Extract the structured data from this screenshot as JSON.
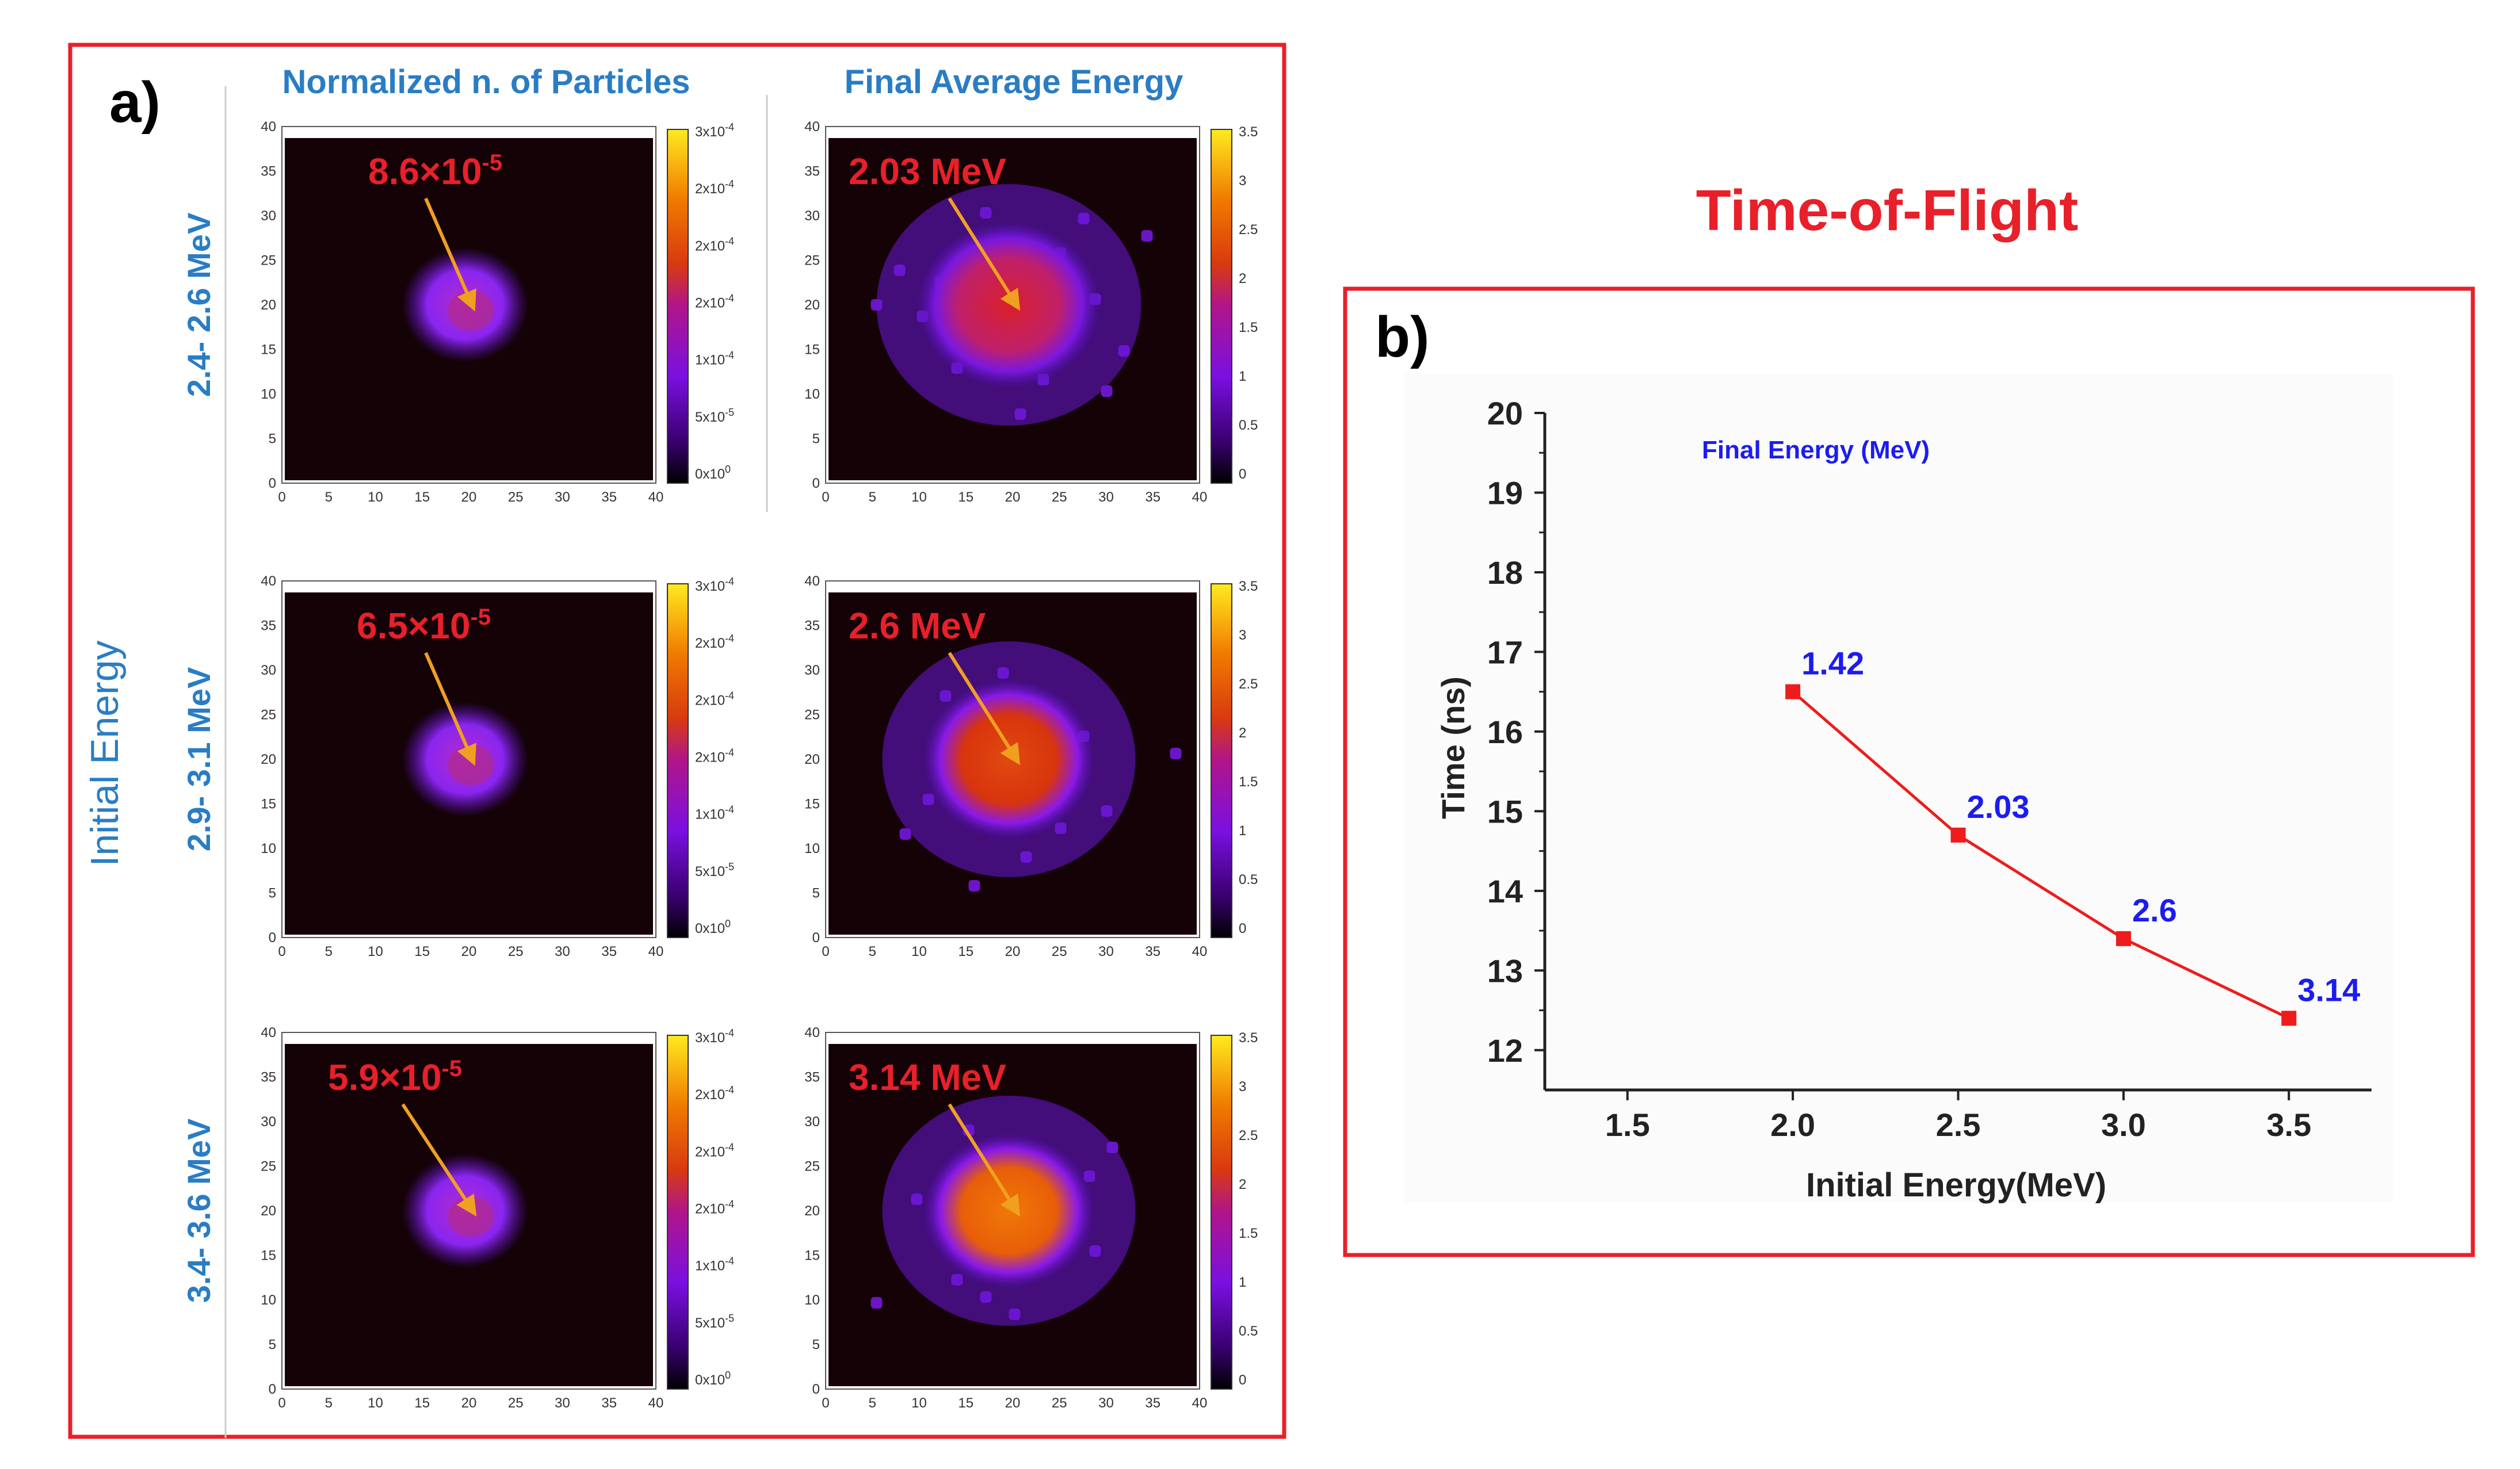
{
  "panel_a": {
    "label": "a)",
    "row_title": "Initial Energy",
    "col_titles": [
      "Normalized n. of Particles",
      "Final Average Energy"
    ],
    "rows": [
      {
        "label": "2.4- 2.6 MeV",
        "particles_label": "8.6×10",
        "particles_exp": "-5",
        "energy_label": "2.03 MeV"
      },
      {
        "label": "2.9- 3.1 MeV",
        "particles_label": "6.5×10",
        "particles_exp": "-5",
        "energy_label": "2.6 MeV"
      },
      {
        "label": "3.4- 3.6 MeV",
        "particles_label": "5.9×10",
        "particles_exp": "-5",
        "energy_label": "3.14 MeV"
      }
    ],
    "axis_ticks": [
      "0",
      "5",
      "10",
      "15",
      "20",
      "25",
      "30",
      "35",
      "40"
    ],
    "colorbar_particles": [
      {
        "m": "3x10",
        "e": "-4"
      },
      {
        "m": "2x10",
        "e": "-4"
      },
      {
        "m": "2x10",
        "e": "-4"
      },
      {
        "m": "2x10",
        "e": "-4"
      },
      {
        "m": "1x10",
        "e": "-4"
      },
      {
        "m": "5x10",
        "e": "-5"
      },
      {
        "m": "0x10",
        "e": "0"
      }
    ],
    "colorbar_energy": [
      "3.5",
      "3",
      "2.5",
      "2",
      "1.5",
      "1",
      "0.5",
      "0"
    ],
    "colors": {
      "frame": "#e8202a",
      "heading": "#2a7dc4",
      "annotation": "#e8202a",
      "arrow": "#f0a020"
    }
  },
  "panel_b": {
    "section_title": "Time-of-Flight",
    "label": "b)",
    "chart_data": {
      "type": "line",
      "title": "Time-of-Flight",
      "legend_label": "Final Energy (MeV)",
      "xlabel": "Initial Energy(MeV)",
      "ylabel": "Time (ns)",
      "xlim": [
        1.25,
        3.75
      ],
      "ylim": [
        11.5,
        20
      ],
      "x_ticks": [
        1.5,
        2.0,
        2.5,
        3.0,
        3.5
      ],
      "x_tick_labels": [
        "1.5",
        "2.0",
        "2.5",
        "3.0",
        "3.5"
      ],
      "y_ticks": [
        12,
        13,
        14,
        15,
        16,
        17,
        18,
        19,
        20
      ],
      "y_tick_labels": [
        "12",
        "13",
        "14",
        "15",
        "16",
        "17",
        "18",
        "19",
        "20"
      ],
      "series": [
        {
          "name": "Time-of-Flight",
          "x": [
            2.0,
            2.5,
            3.0,
            3.5
          ],
          "y": [
            16.5,
            14.7,
            13.4,
            12.4
          ],
          "point_labels": [
            "1.42",
            "2.03",
            "2.6",
            "3.14"
          ]
        }
      ],
      "colors": {
        "line": "#ee1c1c",
        "label": "#1c1cf0",
        "title": "#e8202a"
      }
    }
  }
}
